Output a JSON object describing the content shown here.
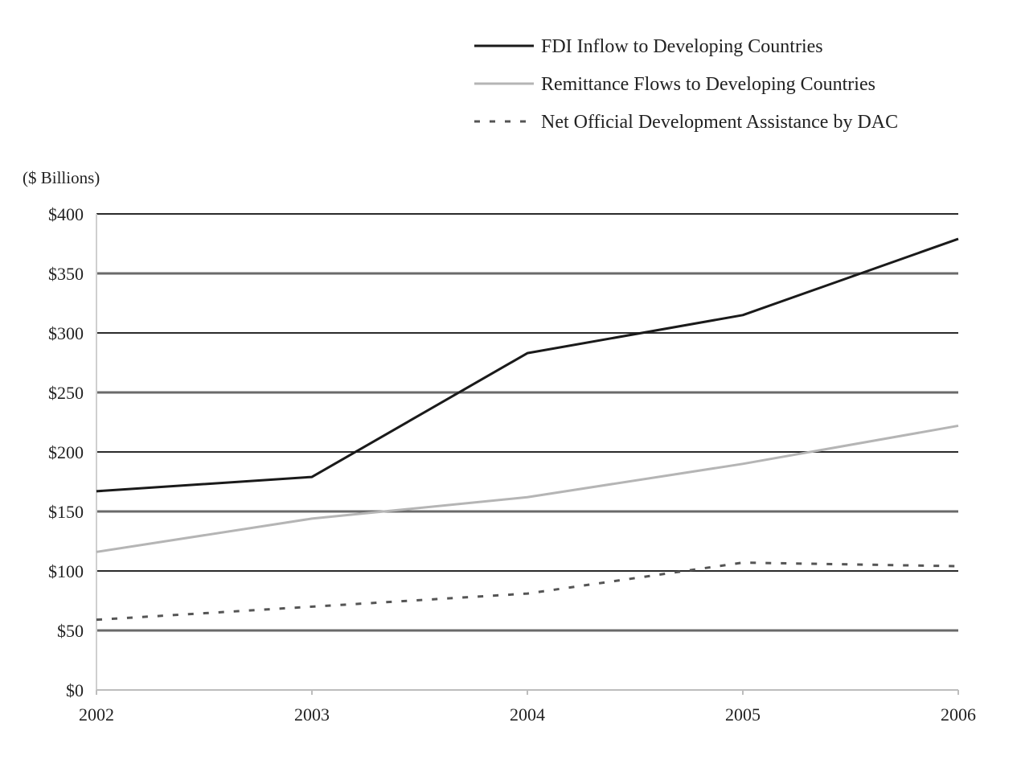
{
  "chart_data": {
    "type": "line",
    "title": "",
    "xlabel": "",
    "ylabel": "($ Billions)",
    "x": [
      2002,
      2003,
      2004,
      2005,
      2006
    ],
    "x_tick_labels": [
      "2002",
      "2003",
      "2004",
      "2005",
      "2006"
    ],
    "ylim": [
      0,
      400
    ],
    "y_ticks": [
      0,
      50,
      100,
      150,
      200,
      250,
      300,
      350,
      400
    ],
    "y_tick_labels": [
      "$0",
      "$50",
      "$100",
      "$150",
      "$200",
      "$250",
      "$300",
      "$350",
      "$400"
    ],
    "grid": true,
    "legend_position": "top-right",
    "series": [
      {
        "name": "FDI Inflow to Developing Countries",
        "values": [
          167,
          179,
          283,
          315,
          379
        ],
        "color": "#1a1a1a",
        "style": "solid"
      },
      {
        "name": "Remittance Flows to Developing Countries",
        "values": [
          116,
          144,
          162,
          190,
          222
        ],
        "color": "#b5b5b5",
        "style": "solid"
      },
      {
        "name": "Net Official Development Assistance by DAC",
        "values": [
          59,
          70,
          81,
          107,
          104
        ],
        "color": "#555555",
        "style": "dashed"
      }
    ]
  }
}
